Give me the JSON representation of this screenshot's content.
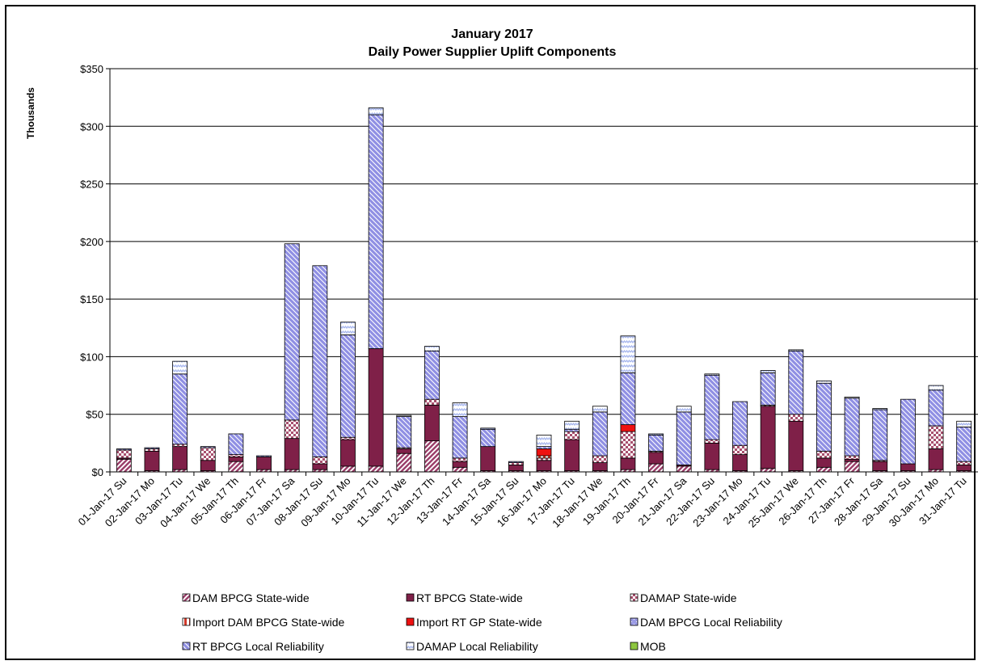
{
  "chart_data": {
    "type": "bar",
    "stacked": true,
    "title": "January 2017",
    "subtitle": "Daily Power Supplier Uplift Components",
    "ylabel": "Thousands",
    "xlabel": "",
    "ylim": [
      0,
      350
    ],
    "yticks": [
      0,
      50,
      100,
      150,
      200,
      250,
      300,
      350
    ],
    "ytick_labels": [
      "$0",
      "$50",
      "$100",
      "$150",
      "$200",
      "$250",
      "$300",
      "$350"
    ],
    "grid": "horizontal",
    "legend_position": "bottom",
    "categories": [
      "01-Jan-17 Su",
      "02-Jan-17 Mo",
      "03-Jan-17 Tu",
      "04-Jan-17 We",
      "05-Jan-17 Th",
      "06-Jan-17 Fr",
      "07-Jan-17 Sa",
      "08-Jan-17 Su",
      "09-Jan-17 Mo",
      "10-Jan-17 Tu",
      "11-Jan-17 We",
      "12-Jan-17 Th",
      "13-Jan-17 Fr",
      "14-Jan-17 Sa",
      "15-Jan-17 Su",
      "16-Jan-17 Mo",
      "17-Jan-17 Tu",
      "18-Jan-17 We",
      "19-Jan-17 Th",
      "20-Jan-17 Fr",
      "21-Jan-17 Sa",
      "22-Jan-17 Su",
      "23-Jan-17 Mo",
      "24-Jan-17 Tu",
      "25-Jan-17 We",
      "26-Jan-17 Th",
      "27-Jan-17 Fr",
      "28-Jan-17 Sa",
      "29-Jan-17 Su",
      "30-Jan-17 Mo",
      "31-Jan-17 Tu"
    ],
    "series": [
      {
        "name": "DAM BPCG State-wide",
        "color": "#9B3F6A",
        "pattern": "diag-up",
        "values": [
          11,
          1,
          2,
          1,
          9,
          2,
          2,
          2,
          5,
          5,
          16,
          27,
          4,
          1,
          1,
          1,
          1,
          1,
          2,
          7,
          5,
          2,
          1,
          3,
          1,
          4,
          9,
          1,
          1,
          2,
          1
        ]
      },
      {
        "name": "RT BPCG State-wide",
        "color": "#7F2048",
        "pattern": "solid",
        "values": [
          1,
          17,
          20,
          9,
          4,
          11,
          27,
          5,
          23,
          102,
          4,
          31,
          5,
          21,
          5,
          9,
          27,
          7,
          10,
          10,
          1,
          23,
          14,
          54,
          43,
          8,
          2,
          8,
          6,
          18,
          5
        ]
      },
      {
        "name": "DAMAP State-wide",
        "color": "#A8506E",
        "pattern": "checker",
        "values": [
          7,
          2,
          2,
          11,
          2,
          0,
          16,
          6,
          2,
          0,
          1,
          5,
          3,
          0,
          2,
          2,
          7,
          6,
          23,
          1,
          0,
          3,
          8,
          1,
          6,
          6,
          3,
          1,
          0,
          20,
          3
        ]
      },
      {
        "name": "Import DAM BPCG State-wide",
        "color": "#D23A2A",
        "pattern": "half",
        "values": [
          0,
          0,
          0,
          0,
          0,
          0,
          0,
          0,
          0,
          0,
          0,
          0,
          0,
          0,
          0,
          2,
          0,
          0,
          0,
          0,
          0,
          0,
          0,
          0,
          0,
          0,
          0,
          0,
          0,
          0,
          0
        ]
      },
      {
        "name": "Import RT GP State-wide",
        "color": "#EE1111",
        "pattern": "solid",
        "values": [
          0,
          0,
          0,
          0,
          0,
          0,
          0,
          0,
          0,
          0,
          0,
          0,
          0,
          0,
          0,
          6,
          0,
          0,
          6,
          0,
          0,
          0,
          0,
          0,
          0,
          0,
          0,
          0,
          0,
          0,
          0
        ]
      },
      {
        "name": "DAM BPCG Local Reliability",
        "color": "#9C9CE6",
        "pattern": "dots",
        "values": [
          0,
          0,
          0,
          0,
          0,
          0,
          0,
          0,
          0,
          0,
          0,
          0,
          0,
          0,
          0,
          0,
          0,
          0,
          0,
          0,
          0,
          0,
          0,
          0,
          0,
          0,
          0,
          0,
          0,
          0,
          0
        ]
      },
      {
        "name": "RT BPCG Local Reliability",
        "color": "#8F8FE3",
        "pattern": "diag-down",
        "values": [
          1,
          1,
          61,
          1,
          18,
          1,
          153,
          166,
          89,
          203,
          27,
          42,
          36,
          15,
          1,
          2,
          2,
          38,
          45,
          14,
          46,
          56,
          38,
          28,
          55,
          59,
          50,
          44,
          56,
          31,
          30
        ]
      },
      {
        "name": "DAMAP Local Reliability",
        "color": "#A9B8EE",
        "pattern": "zigzag",
        "values": [
          0,
          0,
          11,
          0,
          0,
          0,
          0,
          0,
          11,
          6,
          1,
          4,
          12,
          1,
          0,
          10,
          7,
          5,
          32,
          1,
          5,
          1,
          0,
          2,
          1,
          2,
          1,
          1,
          0,
          4,
          5
        ]
      },
      {
        "name": "MOB",
        "color": "#8DC63F",
        "pattern": "solid",
        "values": [
          0,
          0,
          0,
          0,
          0,
          0,
          0,
          0,
          0,
          0,
          0,
          0,
          0,
          0,
          0,
          0,
          0,
          0,
          0,
          0,
          0,
          0,
          0,
          0,
          0,
          0,
          0,
          0,
          0,
          0,
          0
        ]
      }
    ]
  }
}
